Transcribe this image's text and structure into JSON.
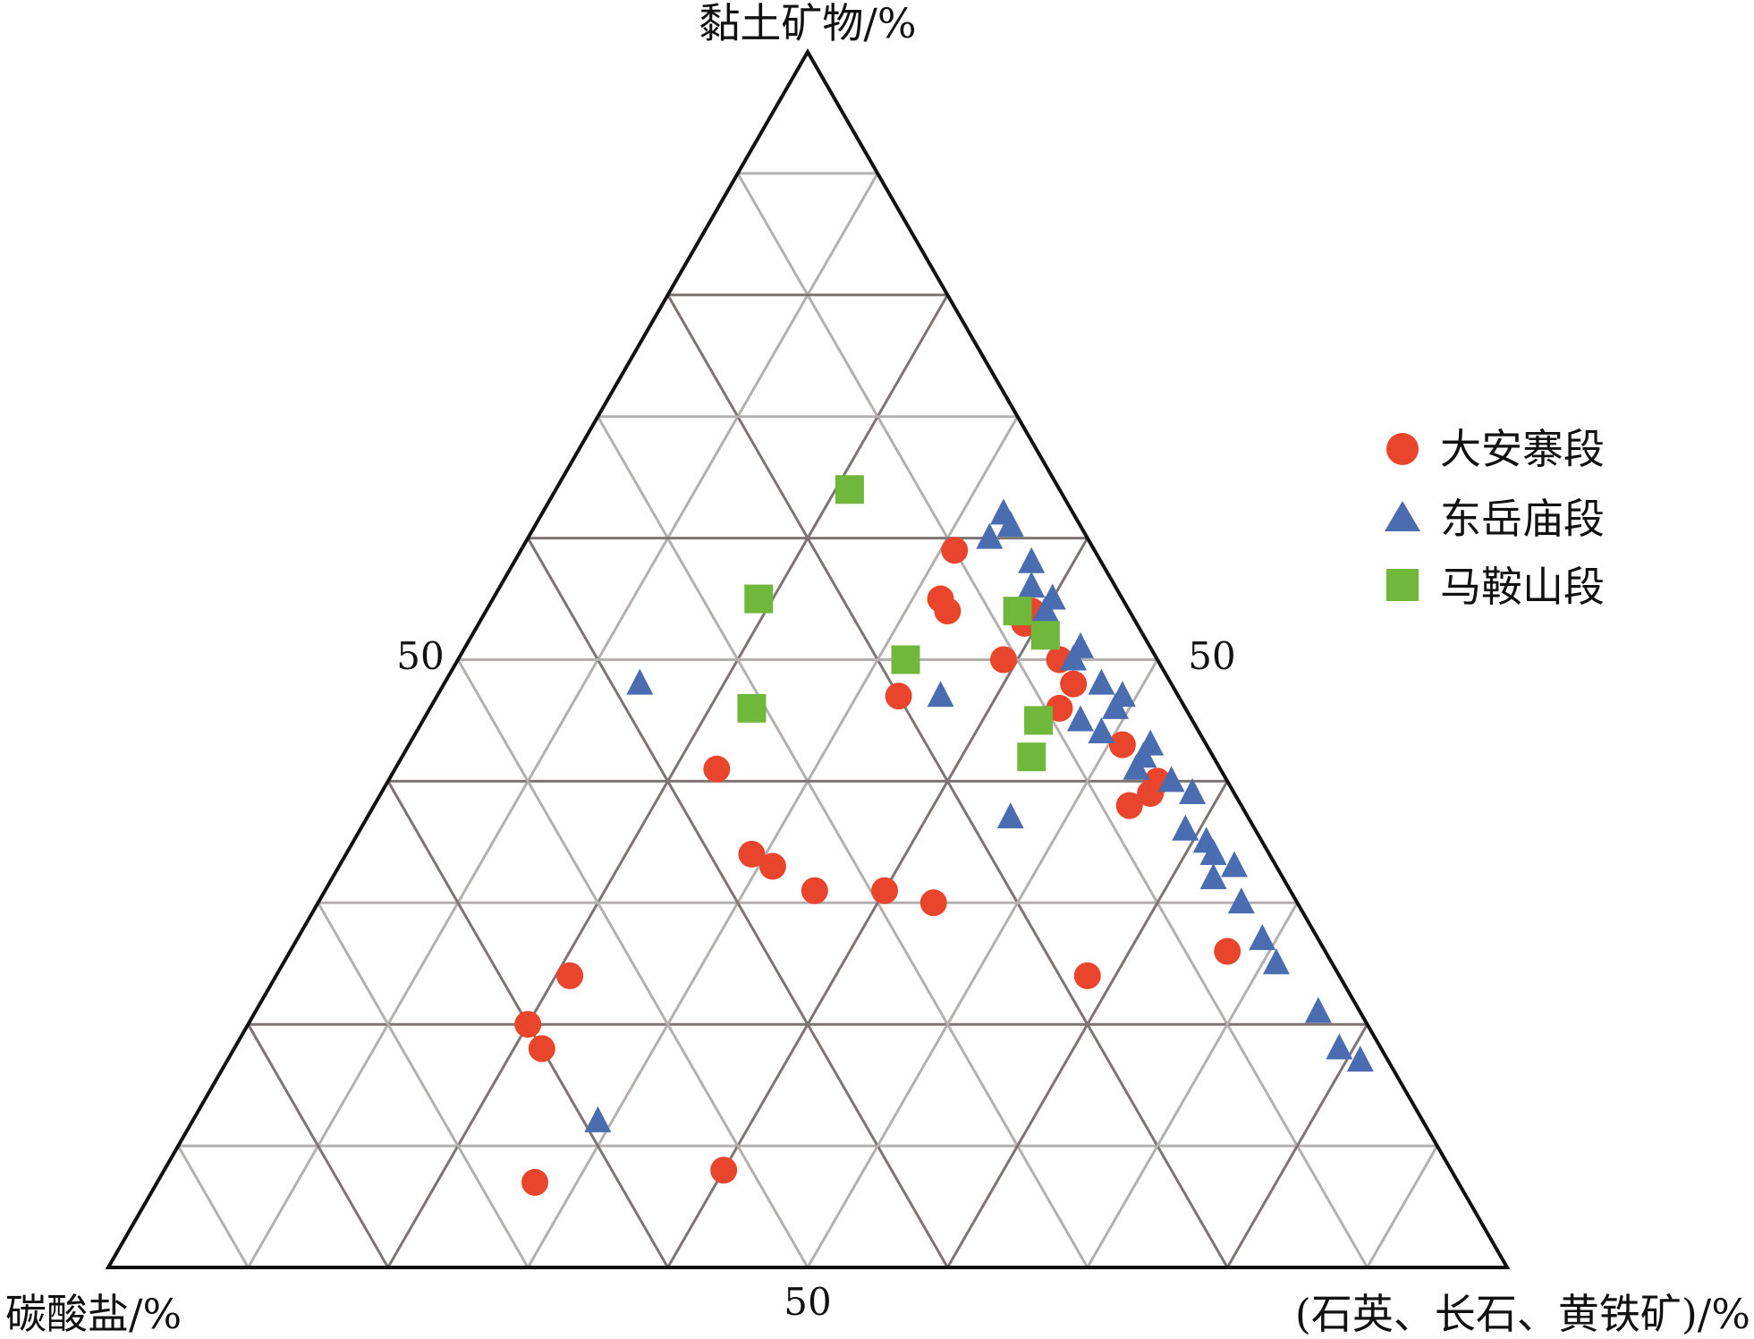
{
  "chart_data": {
    "type": "ternary-scatter",
    "axes": {
      "top": "黏土矿物/%",
      "left": "碳酸盐/%",
      "right": "(石英、长石、黄铁矿)/%"
    },
    "tick_labels": {
      "left_edge": "50",
      "right_edge": "50",
      "bottom_edge": "50"
    },
    "grid": true,
    "grid_step": 10,
    "legend_position": "right",
    "colors": {
      "大安寨段": "#e8452c",
      "东岳庙段": "#4a6cb0",
      "马鞍山段": "#6fb83c"
    },
    "component_order": [
      "clay",
      "carbonate",
      "quartz_feldspar_pyrite"
    ],
    "series": [
      {
        "name": "大安寨段",
        "marker": "circle",
        "points": [
          [
            59,
            10,
            31
          ],
          [
            55,
            13,
            32
          ],
          [
            54,
            13,
            33
          ],
          [
            50,
            11,
            39
          ],
          [
            46,
            9,
            45
          ],
          [
            47,
            20,
            33
          ],
          [
            53,
            8,
            39
          ],
          [
            50,
            7,
            43
          ],
          [
            54,
            7,
            39
          ],
          [
            53,
            8,
            39
          ],
          [
            43,
            6,
            51
          ],
          [
            39,
            6,
            55
          ],
          [
            40,
            5,
            55
          ],
          [
            38,
            8,
            54
          ],
          [
            41,
            36,
            23
          ],
          [
            33,
            36,
            31
          ],
          [
            34,
            37,
            29
          ],
          [
            31,
            34,
            35
          ],
          [
            31,
            29,
            40
          ],
          [
            30,
            26,
            44
          ],
          [
            24,
            55,
            21
          ],
          [
            20,
            60,
            20
          ],
          [
            18,
            60,
            22
          ],
          [
            24,
            18,
            58
          ],
          [
            8,
            52,
            40
          ],
          [
            26,
            7,
            67
          ],
          [
            7,
            66,
            27
          ],
          [
            48,
            7,
            45
          ]
        ]
      },
      {
        "name": "东岳庙段",
        "marker": "triangle",
        "points": [
          [
            62,
            5,
            33
          ],
          [
            60,
            7,
            33
          ],
          [
            61,
            5,
            34
          ],
          [
            58,
            5,
            37
          ],
          [
            56,
            6,
            38
          ],
          [
            55,
            5,
            40
          ],
          [
            54,
            6,
            40
          ],
          [
            51,
            5,
            44
          ],
          [
            50,
            6,
            44
          ],
          [
            48,
            5,
            47
          ],
          [
            47,
            4,
            49
          ],
          [
            46,
            5,
            49
          ],
          [
            45,
            8,
            47
          ],
          [
            47,
            17,
            36
          ],
          [
            44,
            7,
            49
          ],
          [
            43,
            4,
            53
          ],
          [
            42,
            5,
            53
          ],
          [
            41,
            6,
            53
          ],
          [
            40,
            4,
            56
          ],
          [
            39,
            3,
            58
          ],
          [
            37,
            17,
            46
          ],
          [
            36,
            5,
            59
          ],
          [
            35,
            4,
            61
          ],
          [
            34,
            4,
            62
          ],
          [
            33,
            3,
            64
          ],
          [
            32,
            5,
            63
          ],
          [
            30,
            4,
            66
          ],
          [
            27,
            4,
            69
          ],
          [
            25,
            4,
            71
          ],
          [
            21,
            3,
            76
          ],
          [
            18,
            3,
            79
          ],
          [
            17,
            2,
            81
          ],
          [
            48,
            38,
            14
          ],
          [
            12,
            59,
            29
          ]
        ]
      },
      {
        "name": "马鞍山段",
        "marker": "square",
        "points": [
          [
            64,
            15,
            21
          ],
          [
            55,
            26,
            19
          ],
          [
            54,
            8,
            38
          ],
          [
            52,
            7,
            41
          ],
          [
            50,
            18,
            32
          ],
          [
            46,
            31,
            23
          ],
          [
            45,
            11,
            44
          ],
          [
            42,
            13,
            45
          ]
        ]
      }
    ]
  }
}
